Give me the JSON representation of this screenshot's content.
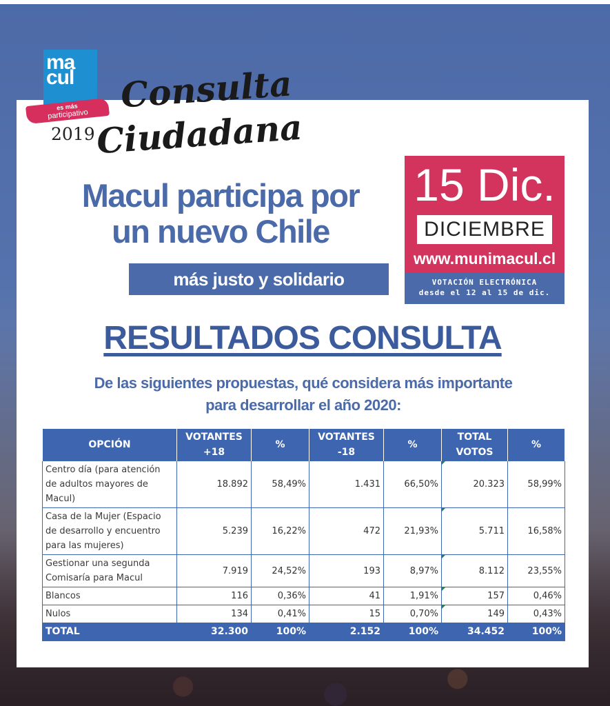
{
  "logo": {
    "line1": "ma",
    "line2": "cul",
    "ribbon_small": "es más",
    "ribbon_big": "participativo",
    "year": "2019"
  },
  "event": {
    "title_line1": "Consulta",
    "title_line2": "Ciudadana"
  },
  "headline": {
    "line1": "Macul participa por",
    "line2": "un nuevo Chile",
    "sub": "más justo y solidario"
  },
  "datebox": {
    "big": "15 Dic.",
    "month": "DICIEMBRE",
    "url": "www.munimacul.cl",
    "foot1": "VOTACIÓN ELECTRÓNICA",
    "foot2": "desde el 12 al 15 de dic."
  },
  "results": {
    "title": "RESULTADOS CONSULTA",
    "question1": "De las siguientes propuestas, qué considera más importante",
    "question2": "para desarrollar el año 2020:"
  },
  "table": {
    "headers": {
      "option": "OPCIÓN",
      "v18_a": "VOTANTES",
      "v18_b": "+18",
      "pct1": "%",
      "vm18_a": "VOTANTES",
      "vm18_b": "-18",
      "pct2": "%",
      "tot_a": "TOTAL",
      "tot_b": "VOTOS",
      "pct3": "%"
    },
    "rows": [
      {
        "label": "Centro día (para atención de adultos mayores de Macul)",
        "v18": "18.892",
        "p18": "58,49%",
        "vm18": "1.431",
        "pm18": "66,50%",
        "tot": "20.323",
        "ptot": "58,99%"
      },
      {
        "label": "Casa de la Mujer (Espacio de desarrollo y encuentro para las mujeres)",
        "v18": "5.239",
        "p18": "16,22%",
        "vm18": "472",
        "pm18": "21,93%",
        "tot": "5.711",
        "ptot": "16,58%"
      },
      {
        "label": "Gestionar una segunda Comisaría para Macul",
        "v18": "7.919",
        "p18": "24,52%",
        "vm18": "193",
        "pm18": "8,97%",
        "tot": "8.112",
        "ptot": "23,55%"
      },
      {
        "label": "Blancos",
        "v18": "116",
        "p18": "0,36%",
        "vm18": "41",
        "pm18": "1,91%",
        "tot": "157",
        "ptot": "0,46%"
      },
      {
        "label": "Nulos",
        "v18": "134",
        "p18": "0,41%",
        "vm18": "15",
        "pm18": "0,70%",
        "tot": "149",
        "ptot": "0,43%"
      }
    ],
    "total": {
      "label": "TOTAL",
      "v18": "32.300",
      "p18": "100%",
      "vm18": "2.152",
      "pm18": "100%",
      "tot": "34.452",
      "ptot": "100%"
    }
  },
  "colors": {
    "brand_blue": "#4b6aa9",
    "table_blue": "#3e66b0",
    "accent_pink": "#d2345e",
    "logo_blue": "#1e8fd0"
  }
}
